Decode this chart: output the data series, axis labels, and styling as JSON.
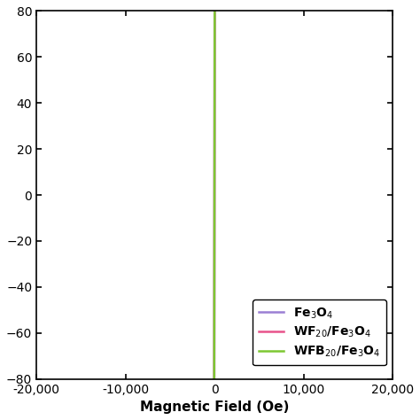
{
  "title": "",
  "xlabel": "Magnetic Field (Oe)",
  "xlim": [
    -20000,
    20000
  ],
  "ylim": [
    -80,
    80
  ],
  "xticks": [
    -20000,
    -10000,
    0,
    10000,
    20000
  ],
  "yticks": [
    -80,
    -60,
    -40,
    -20,
    0,
    20,
    40,
    60,
    80
  ],
  "curves": [
    {
      "label": "Fe$_3$O$_4$",
      "color": "#9B7FD4",
      "Ms": 72.5,
      "scale1": 900,
      "scale2": 8000
    },
    {
      "label": "WF$_{20}$/Fe$_3$O$_4$",
      "color": "#E8538A",
      "Ms": 68.5,
      "scale1": 900,
      "scale2": 8000
    },
    {
      "label": "WFB$_{20}$/Fe$_3$O$_4$",
      "color": "#7DC832",
      "Ms": 63.5,
      "scale1": 1200,
      "scale2": 10000
    }
  ],
  "background_color": "#ffffff",
  "axis_linewidth": 1.2,
  "curve_linewidth": 1.8
}
